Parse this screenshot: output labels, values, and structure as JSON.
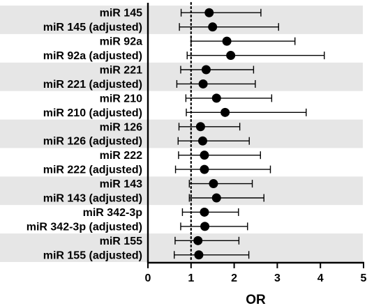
{
  "chart_data": {
    "type": "forest",
    "xlabel": "OR",
    "xlim": [
      0,
      5
    ],
    "xticks": [
      0,
      1,
      2,
      3,
      4,
      5
    ],
    "reference_line": 1,
    "band_color": "#e6e6e6",
    "point_color": "#000000",
    "categories": [
      "miR 145",
      "miR 145 (adjusted)",
      "miR 92a",
      "miR 92a (adjusted)",
      "miR 221",
      "miR 221 (adjusted)",
      "miR 210",
      "miR 210 (adjusted)",
      "miR 126",
      "miR 126 (adjusted)",
      "miR 222",
      "miR 222 (adjusted)",
      "miR 143",
      "miR 143 (adjusted)",
      "miR 342-3p",
      "miR 342-3p (adjusted)",
      "miR 155",
      "miR 155 (adjusted)"
    ],
    "or": [
      1.42,
      1.5,
      1.83,
      1.92,
      1.35,
      1.28,
      1.59,
      1.79,
      1.22,
      1.27,
      1.31,
      1.31,
      1.52,
      1.59,
      1.31,
      1.32,
      1.16,
      1.18
    ],
    "lower": [
      0.77,
      0.73,
      1.0,
      0.91,
      0.76,
      0.67,
      0.88,
      0.89,
      0.72,
      0.7,
      0.71,
      0.64,
      0.96,
      0.96,
      0.8,
      0.76,
      0.63,
      0.61
    ],
    "upper": [
      2.62,
      3.03,
      3.41,
      4.09,
      2.45,
      2.49,
      2.87,
      3.67,
      2.13,
      2.35,
      2.61,
      2.84,
      2.42,
      2.69,
      2.1,
      2.31,
      2.11,
      2.34
    ]
  }
}
